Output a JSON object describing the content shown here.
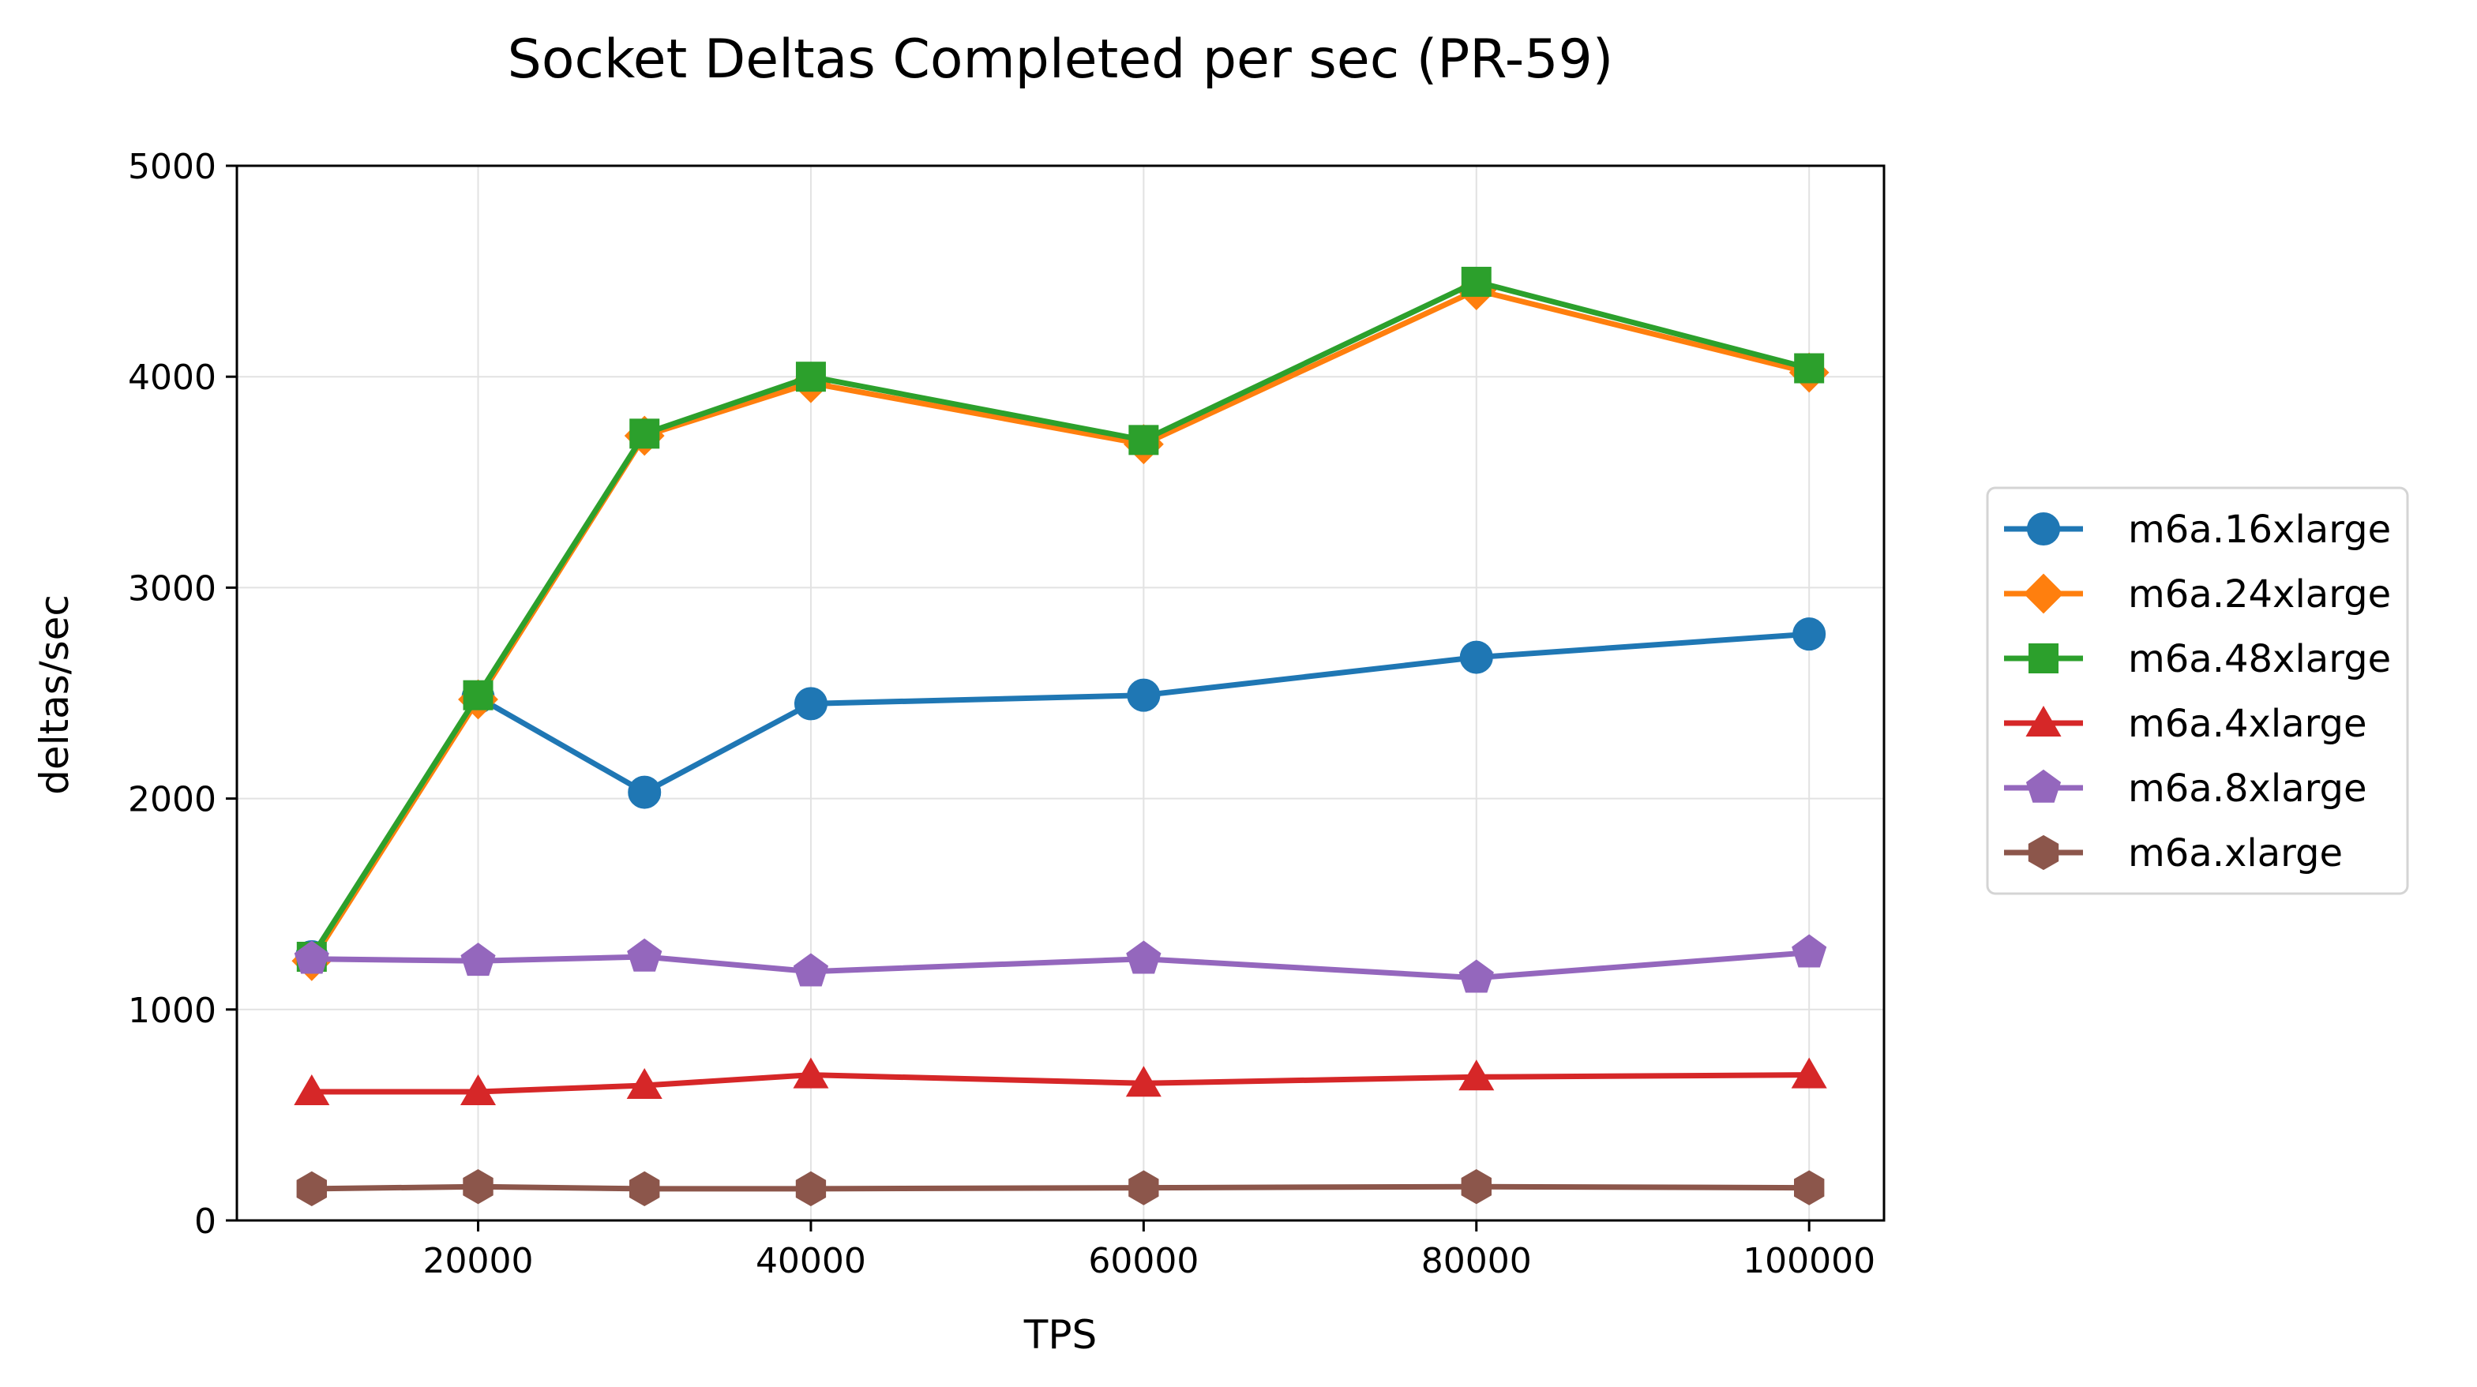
{
  "chart_data": {
    "type": "line",
    "title": "Socket Deltas Completed per sec (PR-59)",
    "xlabel": "TPS",
    "ylabel": "deltas/sec",
    "x": [
      10000,
      20000,
      30000,
      40000,
      60000,
      80000,
      100000
    ],
    "xlim": [
      5500,
      104500
    ],
    "ylim": [
      0,
      5000
    ],
    "xticks": [
      20000,
      40000,
      60000,
      80000,
      100000
    ],
    "yticks": [
      0,
      1000,
      2000,
      3000,
      4000,
      5000
    ],
    "grid": true,
    "legend_position": "right-center",
    "series": [
      {
        "name": "m6a.16xlarge",
        "color": "#1f77b4",
        "marker": "circle",
        "values": [
          1250,
          2480,
          2030,
          2450,
          2490,
          2670,
          2780
        ]
      },
      {
        "name": "m6a.24xlarge",
        "color": "#ff7f0e",
        "marker": "diamond",
        "values": [
          1230,
          2470,
          3720,
          3970,
          3680,
          4410,
          4020
        ]
      },
      {
        "name": "m6a.48xlarge",
        "color": "#2ca02c",
        "marker": "square",
        "values": [
          1250,
          2490,
          3730,
          4000,
          3700,
          4450,
          4040
        ]
      },
      {
        "name": "m6a.4xlarge",
        "color": "#d62728",
        "marker": "triangle",
        "values": [
          610,
          610,
          640,
          690,
          650,
          680,
          690
        ]
      },
      {
        "name": "m6a.8xlarge",
        "color": "#9467bd",
        "marker": "pentagon",
        "values": [
          1240,
          1230,
          1250,
          1180,
          1240,
          1150,
          1270
        ]
      },
      {
        "name": "m6a.xlarge",
        "color": "#8c564b",
        "marker": "hexagon",
        "values": [
          150,
          160,
          150,
          150,
          155,
          160,
          155
        ]
      }
    ]
  }
}
